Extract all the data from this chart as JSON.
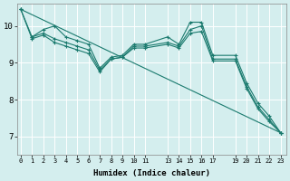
{
  "xlabel": "Humidex (Indice chaleur)",
  "ylabel": "",
  "background_color": "#d4eeee",
  "grid_color": "#ffffff",
  "line_color": "#1a7a6e",
  "x_ticks": [
    0,
    1,
    2,
    3,
    4,
    5,
    6,
    7,
    8,
    9,
    10,
    11,
    13,
    14,
    15,
    16,
    17,
    19,
    20,
    21,
    22,
    23
  ],
  "x_tick_labels": [
    "0",
    "1",
    "2",
    "3",
    "4",
    "5",
    "6",
    "7",
    "8",
    "9",
    "10",
    "11",
    "13",
    "14",
    "15",
    "16",
    "17",
    "19",
    "20",
    "21",
    "22",
    "23"
  ],
  "ylim": [
    6.5,
    10.6
  ],
  "xlim": [
    -0.3,
    23.5
  ],
  "yticks": [
    7,
    8,
    9,
    10
  ],
  "ytick_labels": [
    "7",
    "8",
    "9",
    "10"
  ],
  "lines": [
    {
      "x": [
        0,
        1,
        2,
        3,
        4,
        5,
        6,
        7,
        8,
        9,
        10,
        11,
        13,
        14,
        15,
        16,
        17,
        19,
        20,
        21,
        22,
        23
      ],
      "y": [
        10.45,
        9.7,
        9.9,
        10.0,
        9.7,
        9.6,
        9.5,
        8.85,
        9.15,
        9.2,
        9.5,
        9.5,
        9.7,
        9.5,
        10.1,
        10.1,
        9.2,
        9.2,
        8.45,
        7.9,
        7.55,
        7.1
      ]
    },
    {
      "x": [
        0,
        1,
        2,
        3,
        4,
        5,
        6,
        7,
        8,
        9,
        10,
        11,
        13,
        14,
        15,
        16,
        17,
        19,
        20,
        21,
        22,
        23
      ],
      "y": [
        10.45,
        9.65,
        9.75,
        9.55,
        9.45,
        9.35,
        9.25,
        8.75,
        9.1,
        9.15,
        9.4,
        9.4,
        9.5,
        9.4,
        9.8,
        9.85,
        9.05,
        9.05,
        8.3,
        7.75,
        7.4,
        7.1
      ]
    },
    {
      "x": [
        1,
        2,
        3,
        4,
        5,
        6,
        7,
        8,
        9,
        10,
        11,
        13,
        14,
        15,
        16,
        17,
        19,
        20,
        21,
        22,
        23
      ],
      "y": [
        9.7,
        9.8,
        9.65,
        9.55,
        9.45,
        9.35,
        8.8,
        9.1,
        9.15,
        9.45,
        9.45,
        9.55,
        9.45,
        9.9,
        10.0,
        9.1,
        9.1,
        8.35,
        7.8,
        7.45,
        7.1
      ]
    },
    {
      "x": [
        0,
        23
      ],
      "y": [
        10.45,
        7.1
      ]
    }
  ]
}
